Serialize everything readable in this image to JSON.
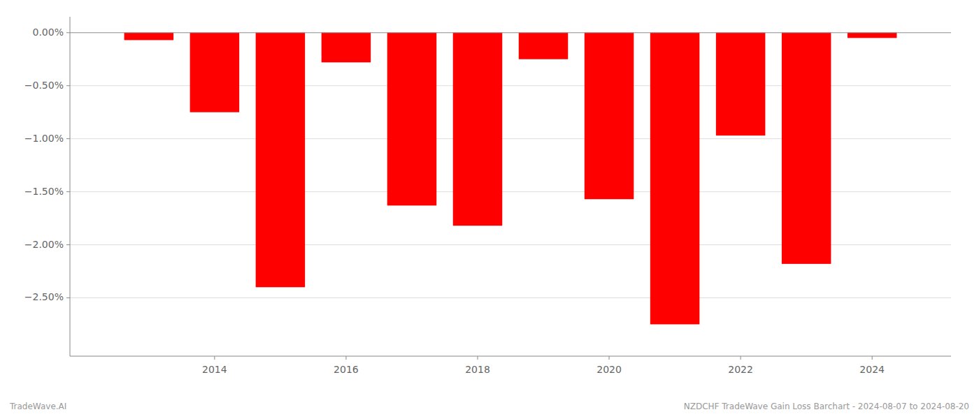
{
  "chart_data": {
    "type": "bar",
    "x": [
      2013,
      2014,
      2015,
      2016,
      2017,
      2018,
      2019,
      2020,
      2021,
      2022,
      2023,
      2024
    ],
    "values": [
      -0.07,
      -0.75,
      -2.4,
      -0.28,
      -1.63,
      -1.82,
      -0.25,
      -1.57,
      -2.75,
      -0.97,
      -2.18,
      -0.05
    ],
    "color": "#ff0000",
    "xlim": [
      2011.8,
      2025.2
    ],
    "xticks": [
      2014,
      2016,
      2018,
      2020,
      2022,
      2024
    ],
    "ylim": [
      -3.05,
      0.15
    ],
    "yticks": [
      {
        "value": 0.0,
        "label": "0.00%"
      },
      {
        "value": -0.5,
        "label": "−0.50%"
      },
      {
        "value": -1.0,
        "label": "−1.00%"
      },
      {
        "value": -1.5,
        "label": "−1.50%"
      },
      {
        "value": -2.0,
        "label": "−2.00%"
      },
      {
        "value": -2.5,
        "label": "−2.50%"
      }
    ],
    "grid": true,
    "annotations": [
      "TradeWave.AI",
      "NZDCHF TradeWave Gain Loss Barchart - 2024-08-07 to 2024-08-20"
    ]
  }
}
